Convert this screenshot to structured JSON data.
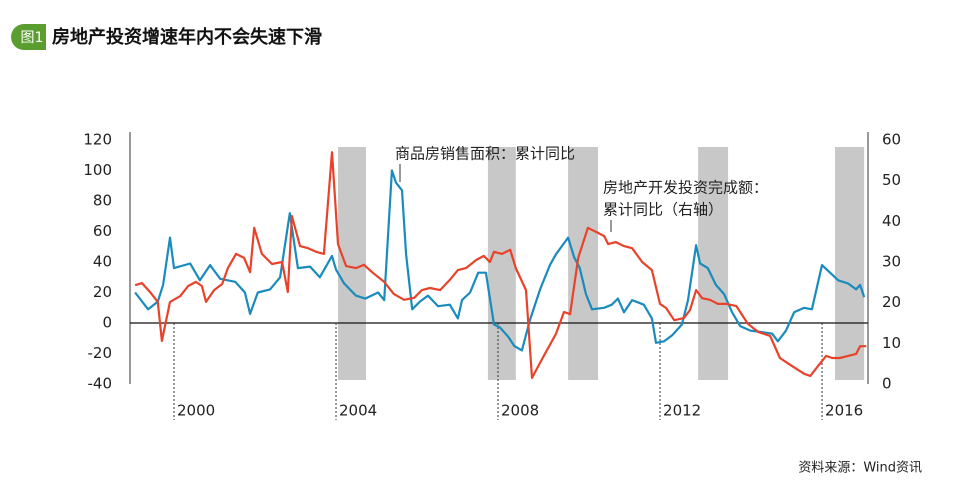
{
  "chart_data": {
    "type": "line",
    "badge": "图1",
    "title": "房地产投资增速年内不会失速下滑",
    "source": "资料来源：Wind资讯",
    "xlim": [
      1999,
      2017.1
    ],
    "xticks": [
      2000,
      2004,
      2008,
      2012,
      2016
    ],
    "ylim": [
      -40,
      120
    ],
    "yticks": [
      -40,
      -20,
      0,
      20,
      40,
      60,
      80,
      100,
      120
    ],
    "y2lim": [
      0,
      60
    ],
    "y2ticks": [
      0,
      10,
      20,
      30,
      40,
      50,
      60
    ],
    "shaded_periods": [
      [
        2004.05,
        2004.74
      ],
      [
        2007.75,
        2008.44
      ],
      [
        2009.73,
        2010.47
      ],
      [
        2012.94,
        2013.68
      ],
      [
        2016.32,
        2017.04
      ]
    ],
    "series": [
      {
        "name": "商品房销售面积：累计同比",
        "color": "#1a8bbd",
        "axis": "y",
        "x": [
          1999.04,
          1999.36,
          1999.6,
          1999.73,
          1999.9,
          2000.0,
          2000.4,
          2000.64,
          2000.89,
          2001.14,
          2001.51,
          2001.75,
          2001.88,
          2002.07,
          2002.37,
          2002.62,
          2002.86,
          2003.06,
          2003.36,
          2003.6,
          2003.9,
          2004.0,
          2004.2,
          2004.49,
          2004.72,
          2005.04,
          2005.19,
          2005.38,
          2005.48,
          2005.63,
          2005.73,
          2005.88,
          2006.07,
          2006.27,
          2006.52,
          2006.81,
          2007.01,
          2007.11,
          2007.31,
          2007.51,
          2007.7,
          2007.9,
          2008.05,
          2008.25,
          2008.4,
          2008.59,
          2008.79,
          2009.04,
          2009.28,
          2009.43,
          2009.73,
          2009.88,
          2010.02,
          2010.17,
          2010.32,
          2010.62,
          2010.81,
          2010.96,
          2011.11,
          2011.31,
          2011.6,
          2011.8,
          2011.9,
          2012.1,
          2012.3,
          2012.54,
          2012.69,
          2012.89,
          2012.99,
          2013.18,
          2013.38,
          2013.58,
          2013.78,
          2013.98,
          2014.23,
          2014.52,
          2014.77,
          2014.91,
          2015.11,
          2015.31,
          2015.56,
          2015.75,
          2016.0,
          2016.2,
          2016.4,
          2016.64,
          2016.84,
          2016.94,
          2017.04
        ],
        "values": [
          20,
          9,
          14,
          25,
          56,
          36,
          39,
          28,
          38,
          29,
          27,
          20,
          6,
          20,
          22,
          30,
          72,
          36,
          37,
          30,
          44,
          35,
          26,
          18,
          16,
          20,
          15,
          100,
          92,
          87,
          45,
          9,
          14,
          18,
          11,
          12,
          3,
          15,
          20,
          33,
          33,
          -1,
          -3,
          -9,
          -15,
          -18,
          2,
          22,
          38,
          45,
          56,
          43,
          36,
          19,
          9,
          10,
          12,
          16,
          7,
          15,
          12,
          3,
          -13,
          -12,
          -8,
          -1,
          15,
          51,
          39,
          36,
          25,
          19,
          7,
          -2,
          -5,
          -6,
          -7,
          -12,
          -5,
          7,
          10,
          9,
          38,
          33,
          28,
          26,
          22,
          25,
          17
        ]
      },
      {
        "name": [
          "房地产开发投资完成额：",
          "累计同比（右轴）"
        ],
        "color": "#e8432a",
        "axis": "y2",
        "x": [
          1999.04,
          1999.21,
          1999.41,
          1999.6,
          1999.7,
          1999.9,
          2000.15,
          2000.35,
          2000.54,
          2000.69,
          2000.79,
          2000.99,
          2001.19,
          2001.33,
          2001.53,
          2001.73,
          2001.88,
          2001.98,
          2002.17,
          2002.42,
          2002.67,
          2002.81,
          2002.91,
          2003.11,
          2003.31,
          2003.51,
          2003.7,
          2003.9,
          2004.05,
          2004.25,
          2004.49,
          2004.69,
          2004.89,
          2005.19,
          2005.43,
          2005.68,
          2005.93,
          2006.12,
          2006.32,
          2006.57,
          2006.81,
          2007.01,
          2007.21,
          2007.46,
          2007.65,
          2007.8,
          2007.9,
          2008.1,
          2008.3,
          2008.44,
          2008.69,
          2008.84,
          2009.14,
          2009.43,
          2009.63,
          2009.78,
          2009.98,
          2010.22,
          2010.42,
          2010.62,
          2010.72,
          2010.91,
          2011.11,
          2011.31,
          2011.56,
          2011.8,
          2012.0,
          2012.15,
          2012.35,
          2012.59,
          2012.74,
          2012.89,
          2013.04,
          2013.23,
          2013.43,
          2013.63,
          2013.88,
          2014.17,
          2014.42,
          2014.72,
          2014.96,
          2015.26,
          2015.56,
          2015.71,
          2015.9,
          2016.1,
          2016.25,
          2016.44,
          2016.64,
          2016.84,
          2016.94,
          2017.09
        ],
        "values": [
          24.3,
          24.8,
          22.6,
          20.2,
          10.6,
          20.2,
          21.6,
          24.1,
          25.1,
          24.1,
          20.2,
          23.1,
          24.6,
          28.5,
          32,
          31,
          27.5,
          38.4,
          32,
          29.5,
          30,
          22.6,
          41.3,
          33.9,
          33.4,
          32.5,
          32,
          57,
          34.4,
          29,
          28.5,
          29.3,
          27.5,
          25.1,
          22.1,
          20.7,
          21.2,
          23.1,
          23.6,
          23.1,
          25.6,
          28,
          28.5,
          30.5,
          31.5,
          30,
          32.5,
          32,
          33,
          28.5,
          23.1,
          1.5,
          7.1,
          12.3,
          17.7,
          17.2,
          31,
          38.4,
          37.4,
          36.4,
          34.4,
          34.9,
          33.9,
          33.4,
          30,
          28,
          19.7,
          18.7,
          15.7,
          16.2,
          18.2,
          23.1,
          21.1,
          20.7,
          19.7,
          19.7,
          19.2,
          14.8,
          12.8,
          11.8,
          6.4,
          4.4,
          2.5,
          2,
          4.4,
          6.9,
          6.4,
          6.4,
          6.9,
          7.4,
          9.3,
          9.3
        ]
      }
    ]
  }
}
